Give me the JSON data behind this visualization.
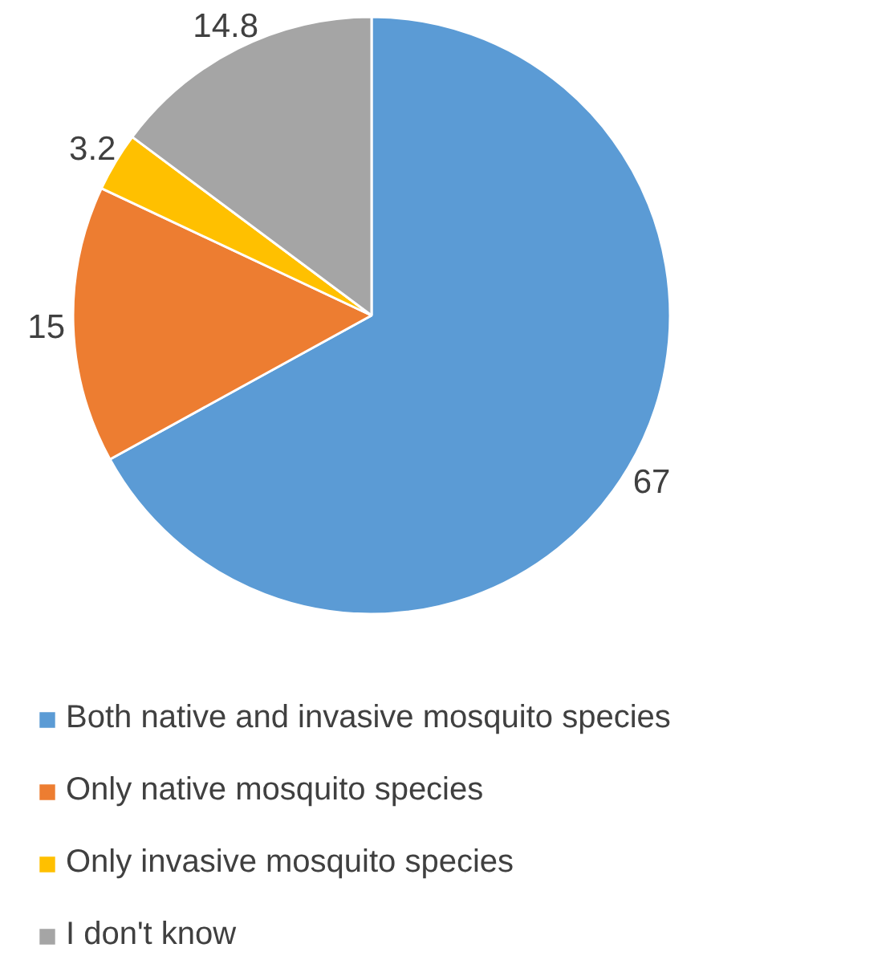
{
  "chart_data": {
    "type": "pie",
    "categories": [
      "Both native and invasive mosquito species",
      "Only native mosquito species",
      "Only invasive mosquito species",
      "I don't know"
    ],
    "values": [
      67,
      15,
      3.2,
      14.8
    ],
    "colors": [
      "#5b9bd5",
      "#ed7d31",
      "#ffc000",
      "#a5a5a5"
    ],
    "data_labels": true,
    "legend": "bottom"
  }
}
